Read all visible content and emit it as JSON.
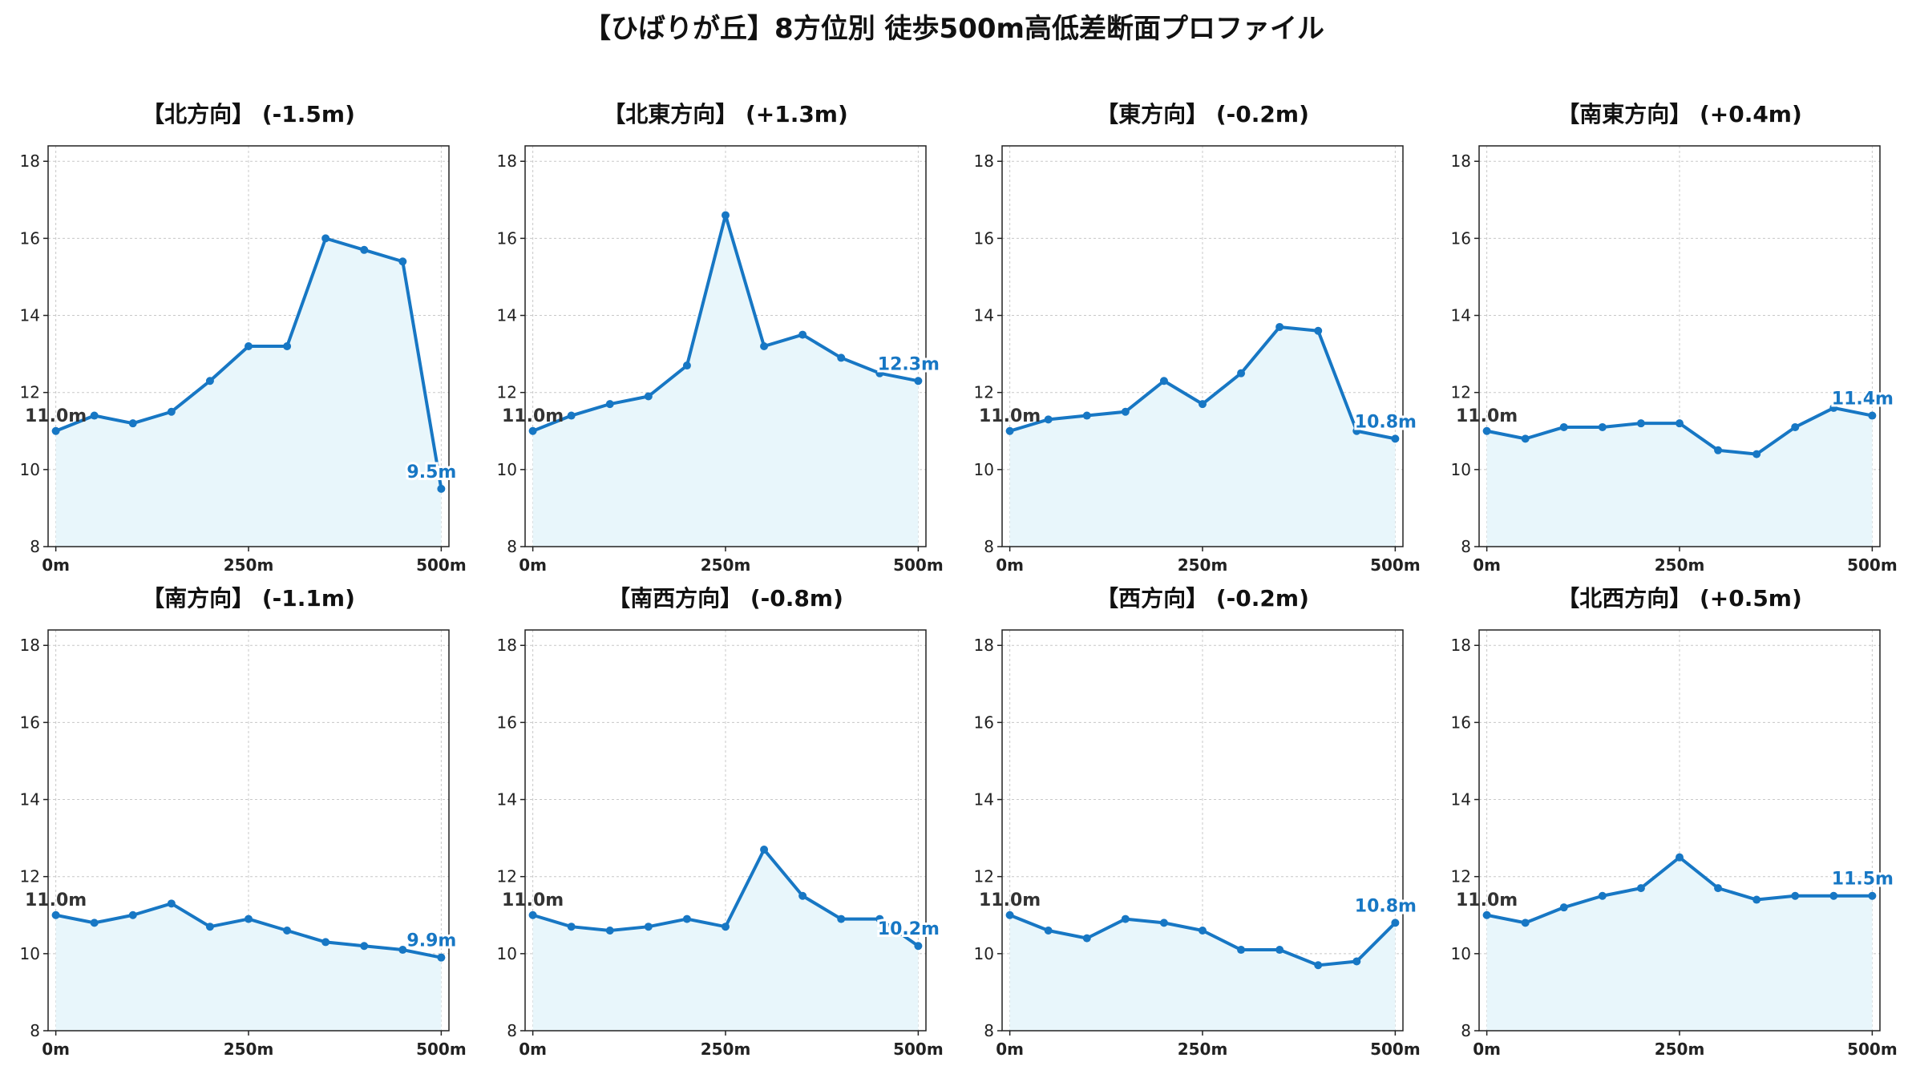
{
  "title": "【ひばりが丘】8方位別 徒歩500m高低差断面プロファイル",
  "colors": {
    "line": "#1777c4",
    "fill": "#e8f6fb",
    "grid": "#c8c8c8",
    "start_label": "#333333",
    "end_label": "#1777c4"
  },
  "chart_data": [
    {
      "type": "area",
      "title": "【北方向】 (-1.5m)",
      "x": [
        0,
        50,
        100,
        150,
        200,
        250,
        300,
        350,
        400,
        450,
        500
      ],
      "y": [
        11.0,
        11.4,
        11.2,
        11.5,
        12.3,
        13.2,
        13.2,
        16.0,
        15.7,
        15.4,
        9.5
      ],
      "xticks": [
        "0m",
        "250m",
        "500m"
      ],
      "yticks": [
        8,
        10,
        12,
        14,
        16,
        18
      ],
      "ylim": [
        8,
        18.4
      ],
      "xlim": [
        -10,
        510
      ],
      "start_label": "11.0m",
      "end_label": "9.5m",
      "grid": true
    },
    {
      "type": "area",
      "title": "【北東方向】 (+1.3m)",
      "x": [
        0,
        50,
        100,
        150,
        200,
        250,
        300,
        350,
        400,
        450,
        500
      ],
      "y": [
        11.0,
        11.4,
        11.7,
        11.9,
        12.7,
        16.6,
        13.2,
        13.5,
        12.9,
        12.5,
        12.3
      ],
      "xticks": [
        "0m",
        "250m",
        "500m"
      ],
      "yticks": [
        8,
        10,
        12,
        14,
        16,
        18
      ],
      "ylim": [
        8,
        18.4
      ],
      "xlim": [
        -10,
        510
      ],
      "start_label": "11.0m",
      "end_label": "12.3m",
      "grid": true
    },
    {
      "type": "area",
      "title": "【東方向】 (-0.2m)",
      "x": [
        0,
        50,
        100,
        150,
        200,
        250,
        300,
        350,
        400,
        450,
        500
      ],
      "y": [
        11.0,
        11.3,
        11.4,
        11.5,
        12.3,
        11.7,
        12.5,
        13.7,
        13.6,
        11.0,
        10.8
      ],
      "xticks": [
        "0m",
        "250m",
        "500m"
      ],
      "yticks": [
        8,
        10,
        12,
        14,
        16,
        18
      ],
      "ylim": [
        8,
        18.4
      ],
      "xlim": [
        -10,
        510
      ],
      "start_label": "11.0m",
      "end_label": "10.8m",
      "grid": true
    },
    {
      "type": "area",
      "title": "【南東方向】 (+0.4m)",
      "x": [
        0,
        50,
        100,
        150,
        200,
        250,
        300,
        350,
        400,
        450,
        500
      ],
      "y": [
        11.0,
        10.8,
        11.1,
        11.1,
        11.2,
        11.2,
        10.5,
        10.4,
        11.1,
        11.6,
        11.4
      ],
      "xticks": [
        "0m",
        "250m",
        "500m"
      ],
      "yticks": [
        8,
        10,
        12,
        14,
        16,
        18
      ],
      "ylim": [
        8,
        18.4
      ],
      "xlim": [
        -10,
        510
      ],
      "start_label": "11.0m",
      "end_label": "11.4m",
      "grid": true
    },
    {
      "type": "area",
      "title": "【南方向】 (-1.1m)",
      "x": [
        0,
        50,
        100,
        150,
        200,
        250,
        300,
        350,
        400,
        450,
        500
      ],
      "y": [
        11.0,
        10.8,
        11.0,
        11.3,
        10.7,
        10.9,
        10.6,
        10.3,
        10.2,
        10.1,
        9.9
      ],
      "xticks": [
        "0m",
        "250m",
        "500m"
      ],
      "yticks": [
        8,
        10,
        12,
        14,
        16,
        18
      ],
      "ylim": [
        8,
        18.4
      ],
      "xlim": [
        -10,
        510
      ],
      "start_label": "11.0m",
      "end_label": "9.9m",
      "grid": true
    },
    {
      "type": "area",
      "title": "【南西方向】 (-0.8m)",
      "x": [
        0,
        50,
        100,
        150,
        200,
        250,
        300,
        350,
        400,
        450,
        500
      ],
      "y": [
        11.0,
        10.7,
        10.6,
        10.7,
        10.9,
        10.7,
        12.7,
        11.5,
        10.9,
        10.9,
        10.2
      ],
      "xticks": [
        "0m",
        "250m",
        "500m"
      ],
      "yticks": [
        8,
        10,
        12,
        14,
        16,
        18
      ],
      "ylim": [
        8,
        18.4
      ],
      "xlim": [
        -10,
        510
      ],
      "start_label": "11.0m",
      "end_label": "10.2m",
      "grid": true
    },
    {
      "type": "area",
      "title": "【西方向】 (-0.2m)",
      "x": [
        0,
        50,
        100,
        150,
        200,
        250,
        300,
        350,
        400,
        450,
        500
      ],
      "y": [
        11.0,
        10.6,
        10.4,
        10.9,
        10.8,
        10.6,
        10.1,
        10.1,
        9.7,
        9.8,
        10.8
      ],
      "xticks": [
        "0m",
        "250m",
        "500m"
      ],
      "yticks": [
        8,
        10,
        12,
        14,
        16,
        18
      ],
      "ylim": [
        8,
        18.4
      ],
      "xlim": [
        -10,
        510
      ],
      "start_label": "11.0m",
      "end_label": "10.8m",
      "grid": true
    },
    {
      "type": "area",
      "title": "【北西方向】 (+0.5m)",
      "x": [
        0,
        50,
        100,
        150,
        200,
        250,
        300,
        350,
        400,
        450,
        500
      ],
      "y": [
        11.0,
        10.8,
        11.2,
        11.5,
        11.7,
        12.5,
        11.7,
        11.4,
        11.5,
        11.5,
        11.5
      ],
      "xticks": [
        "0m",
        "250m",
        "500m"
      ],
      "yticks": [
        8,
        10,
        12,
        14,
        16,
        18
      ],
      "ylim": [
        8,
        18.4
      ],
      "xlim": [
        -10,
        510
      ],
      "start_label": "11.0m",
      "end_label": "11.5m",
      "grid": true
    }
  ]
}
